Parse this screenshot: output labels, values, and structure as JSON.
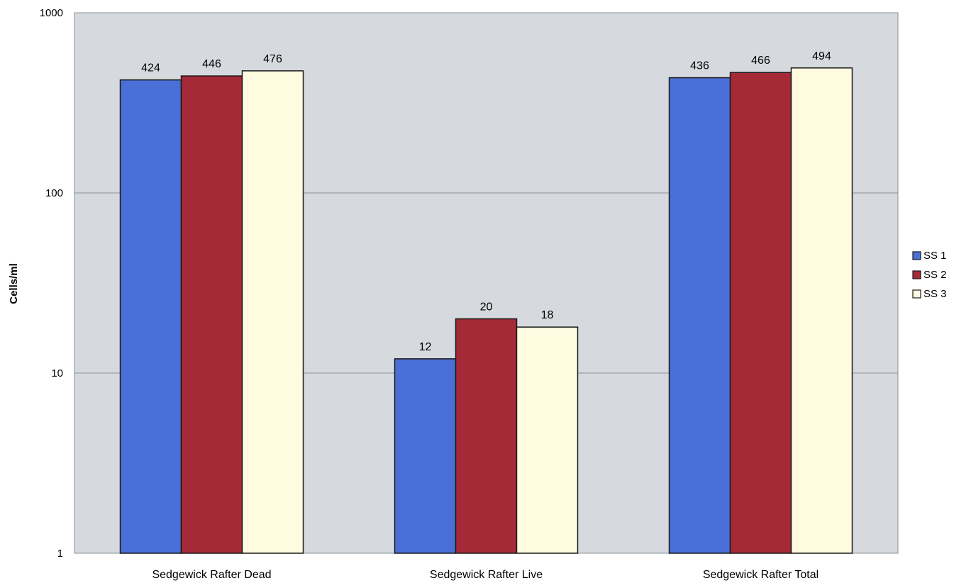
{
  "chart_data": {
    "type": "bar",
    "scale": "log",
    "categories": [
      "Sedgewick Rafter Dead",
      "Sedgewick Rafter Live",
      "Sedgewick Rafter Total"
    ],
    "series": [
      {
        "name": "SS 1",
        "values": [
          424,
          12,
          436
        ],
        "labels": [
          "424",
          "12",
          "436"
        ],
        "color": "#4a6fd6"
      },
      {
        "name": "SS 2",
        "values": [
          446,
          20,
          466
        ],
        "labels": [
          "446",
          "20",
          "466"
        ],
        "color": "#a52a38"
      },
      {
        "name": "SS 3",
        "values": [
          476,
          18,
          494
        ],
        "labels": [
          "476",
          "18",
          "494"
        ],
        "color": "#fffbe0"
      }
    ],
    "ylabel": "Cells/ml",
    "ylim": [
      1,
      1000
    ],
    "yticks": [
      1,
      10,
      100,
      1000
    ],
    "ytick_labels": [
      "1",
      "10",
      "100",
      "1000"
    ],
    "grid": true,
    "legend_position": "right",
    "colors": {
      "plot_background": "#d6dade",
      "gridline": "#8c9196",
      "bar_outline": "#1a1a1a"
    }
  }
}
